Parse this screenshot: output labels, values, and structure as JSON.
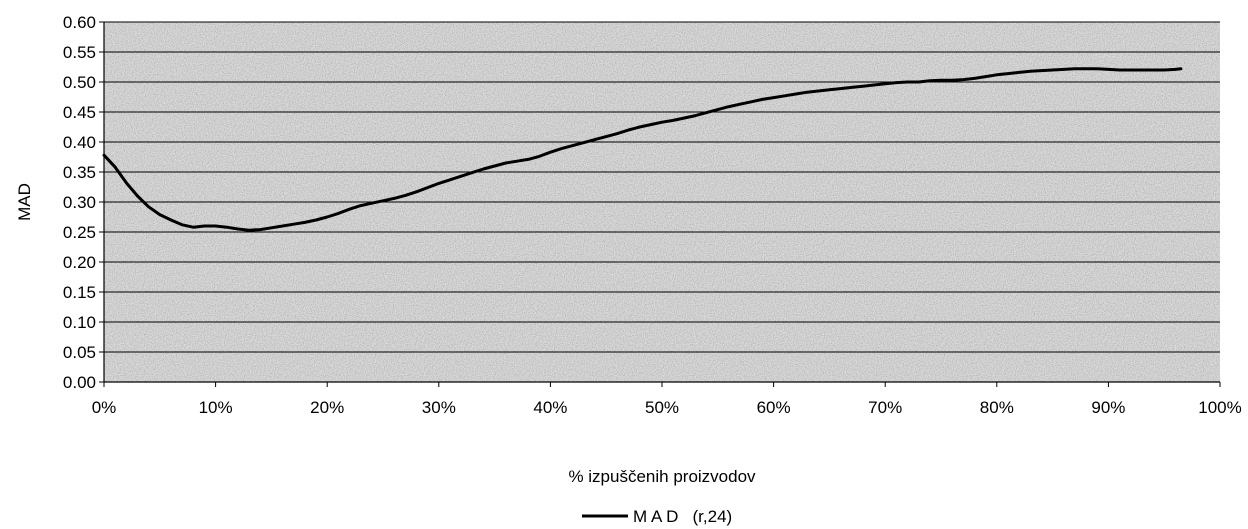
{
  "chart_data": {
    "type": "line",
    "xlabel": "% izpuščenih proizvodov",
    "ylabel": "MAD",
    "xlim": [
      0,
      100
    ],
    "ylim": [
      0,
      0.6
    ],
    "grid": "horizontal",
    "legend_position": "bottom",
    "x_ticks": [
      "0%",
      "10%",
      "20%",
      "30%",
      "40%",
      "50%",
      "60%",
      "70%",
      "80%",
      "90%",
      "100%"
    ],
    "y_ticks": [
      "0.00",
      "0.05",
      "0.10",
      "0.15",
      "0.20",
      "0.25",
      "0.30",
      "0.35",
      "0.40",
      "0.45",
      "0.50",
      "0.55",
      "0.60"
    ],
    "legend_label": "M A D   (r,24)",
    "series": [
      {
        "name": "M A D   (r,24)",
        "color": "#000000",
        "x": [
          0,
          1,
          2,
          3,
          4,
          5,
          6,
          7,
          8,
          9,
          10,
          11,
          12,
          13,
          14,
          15,
          16,
          17,
          18,
          19,
          20,
          21,
          22,
          23,
          24,
          25,
          26,
          27,
          28,
          29,
          30,
          31,
          32,
          33,
          34,
          35,
          36,
          37,
          38,
          39,
          40,
          41,
          42,
          43,
          44,
          45,
          46,
          47,
          48,
          49,
          50,
          51,
          52,
          53,
          54,
          55,
          56,
          57,
          58,
          59,
          60,
          61,
          62,
          63,
          64,
          65,
          66,
          67,
          68,
          69,
          70,
          71,
          72,
          73,
          74,
          75,
          76,
          77,
          78,
          79,
          80,
          81,
          82,
          83,
          84,
          85,
          86,
          87,
          88,
          89,
          90,
          91,
          92,
          93,
          94,
          95,
          96,
          96.5
        ],
        "values": [
          0.378,
          0.358,
          0.332,
          0.31,
          0.292,
          0.279,
          0.27,
          0.262,
          0.258,
          0.26,
          0.26,
          0.258,
          0.255,
          0.253,
          0.254,
          0.257,
          0.26,
          0.263,
          0.266,
          0.27,
          0.275,
          0.281,
          0.288,
          0.294,
          0.298,
          0.302,
          0.306,
          0.311,
          0.317,
          0.324,
          0.331,
          0.337,
          0.343,
          0.349,
          0.355,
          0.36,
          0.365,
          0.368,
          0.371,
          0.376,
          0.383,
          0.389,
          0.394,
          0.399,
          0.404,
          0.409,
          0.414,
          0.42,
          0.425,
          0.429,
          0.433,
          0.436,
          0.44,
          0.444,
          0.449,
          0.454,
          0.459,
          0.463,
          0.467,
          0.471,
          0.474,
          0.477,
          0.48,
          0.483,
          0.485,
          0.487,
          0.489,
          0.491,
          0.493,
          0.495,
          0.497,
          0.499,
          0.5,
          0.5,
          0.502,
          0.503,
          0.503,
          0.504,
          0.506,
          0.509,
          0.512,
          0.514,
          0.516,
          0.518,
          0.519,
          0.52,
          0.521,
          0.522,
          0.522,
          0.522,
          0.521,
          0.52,
          0.52,
          0.52,
          0.52,
          0.52,
          0.521,
          0.522
        ]
      }
    ]
  }
}
